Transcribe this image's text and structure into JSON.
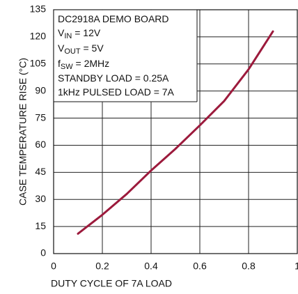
{
  "chart_data": {
    "type": "line",
    "x_label": "DUTY CYCLE OF 7A LOAD",
    "y_label": "CASE TEMPERATURE RISE (°C)",
    "x": [
      0.1,
      0.2,
      0.3,
      0.4,
      0.5,
      0.6,
      0.7,
      0.8,
      0.9
    ],
    "series": [
      {
        "color": "#9c1a3c",
        "values": [
          11,
          21.5,
          33,
          46,
          58,
          71,
          84.5,
          102,
          123
        ]
      }
    ],
    "xlim": [
      0,
      1
    ],
    "xticks": [
      0,
      0.2,
      0.4,
      0.6,
      0.8,
      1
    ],
    "ylim": [
      0,
      135
    ],
    "yticks": [
      0,
      15,
      30,
      45,
      60,
      75,
      90,
      105,
      120,
      135
    ],
    "grid": true,
    "annotation": [
      [
        {
          "text": "DC2918A DEMO BOARD"
        }
      ],
      [
        {
          "text": "V"
        },
        {
          "text": "IN",
          "sub": true
        },
        {
          "text": " = 12V"
        }
      ],
      [
        {
          "text": "V"
        },
        {
          "text": "OUT",
          "sub": true
        },
        {
          "text": " = 5V"
        }
      ],
      [
        {
          "text": "f"
        },
        {
          "text": "SW",
          "sub": true
        },
        {
          "text": " = 2MHz"
        }
      ],
      [
        {
          "text": "STANDBY LOAD = 0.25A"
        }
      ],
      [
        {
          "text": "1kHz PULSED LOAD = 7A"
        }
      ]
    ]
  }
}
